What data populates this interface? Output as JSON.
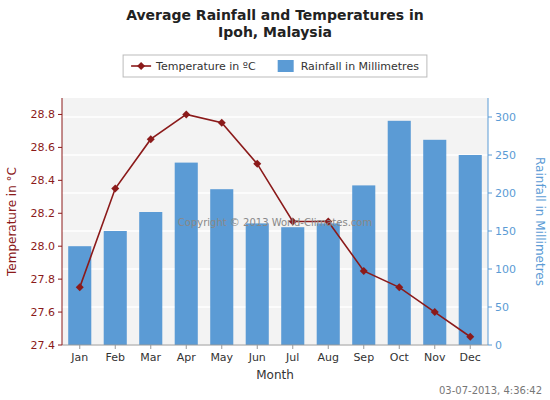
{
  "chart_data": {
    "type": "bar",
    "title": "Average Rainfall and Temperatures in\nIpoh, Malaysia",
    "categories": [
      "Jan",
      "Feb",
      "Mar",
      "Apr",
      "May",
      "Jun",
      "Jul",
      "Aug",
      "Sep",
      "Oct",
      "Nov",
      "Dec"
    ],
    "xlabel": "Month",
    "ylabel": "Temperature in °C",
    "y2label": "Rainfall in Millimetres",
    "ylim": [
      27.4,
      28.9
    ],
    "yticks": [
      27.4,
      27.6,
      27.8,
      {
        "value": 28.0,
        "label": "28.0"
      },
      28.2,
      28.4,
      28.6,
      28.8
    ],
    "y2lim": [
      0,
      325
    ],
    "y2ticks": [
      0,
      50,
      100,
      150,
      200,
      250,
      300
    ],
    "grid": true,
    "legend": "top",
    "series": [
      {
        "name": "Temperature in ºC",
        "type": "line",
        "color": "#8B1A1A",
        "marker": "diamond",
        "values": [
          27.75,
          28.35,
          28.65,
          28.8,
          28.75,
          28.5,
          28.15,
          28.15,
          27.85,
          27.75,
          27.6,
          27.45
        ]
      },
      {
        "name": "Rainfall in Millimetres",
        "type": "bar",
        "color": "#5B9BD5",
        "axis": "y2",
        "values": [
          130,
          150,
          175,
          240,
          205,
          160,
          155,
          160,
          210,
          295,
          270,
          250
        ]
      }
    ],
    "annotations": [
      {
        "text": "Copyright © 2013 World-Climates.com"
      },
      {
        "text": "03-07-2013, 4:36:42"
      }
    ]
  }
}
